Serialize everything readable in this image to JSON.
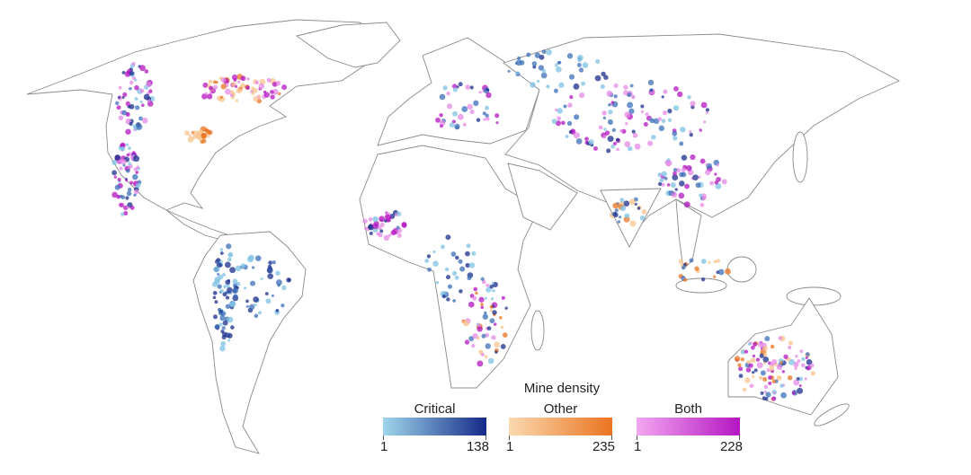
{
  "legend": {
    "title": "Mine density",
    "scales": [
      {
        "label": "Critical",
        "min": "1",
        "max": "138",
        "color_low": "#9fd6ea",
        "color_high": "#162a8a"
      },
      {
        "label": "Other",
        "min": "1",
        "max": "235",
        "color_low": "#fbd9b0",
        "color_high": "#ea7420"
      },
      {
        "label": "Both",
        "min": "1",
        "max": "228",
        "color_low": "#f3a6f0",
        "color_high": "#b416c2"
      }
    ]
  },
  "colors": {
    "border": "#8a8a8a",
    "background": "#ffffff"
  }
}
